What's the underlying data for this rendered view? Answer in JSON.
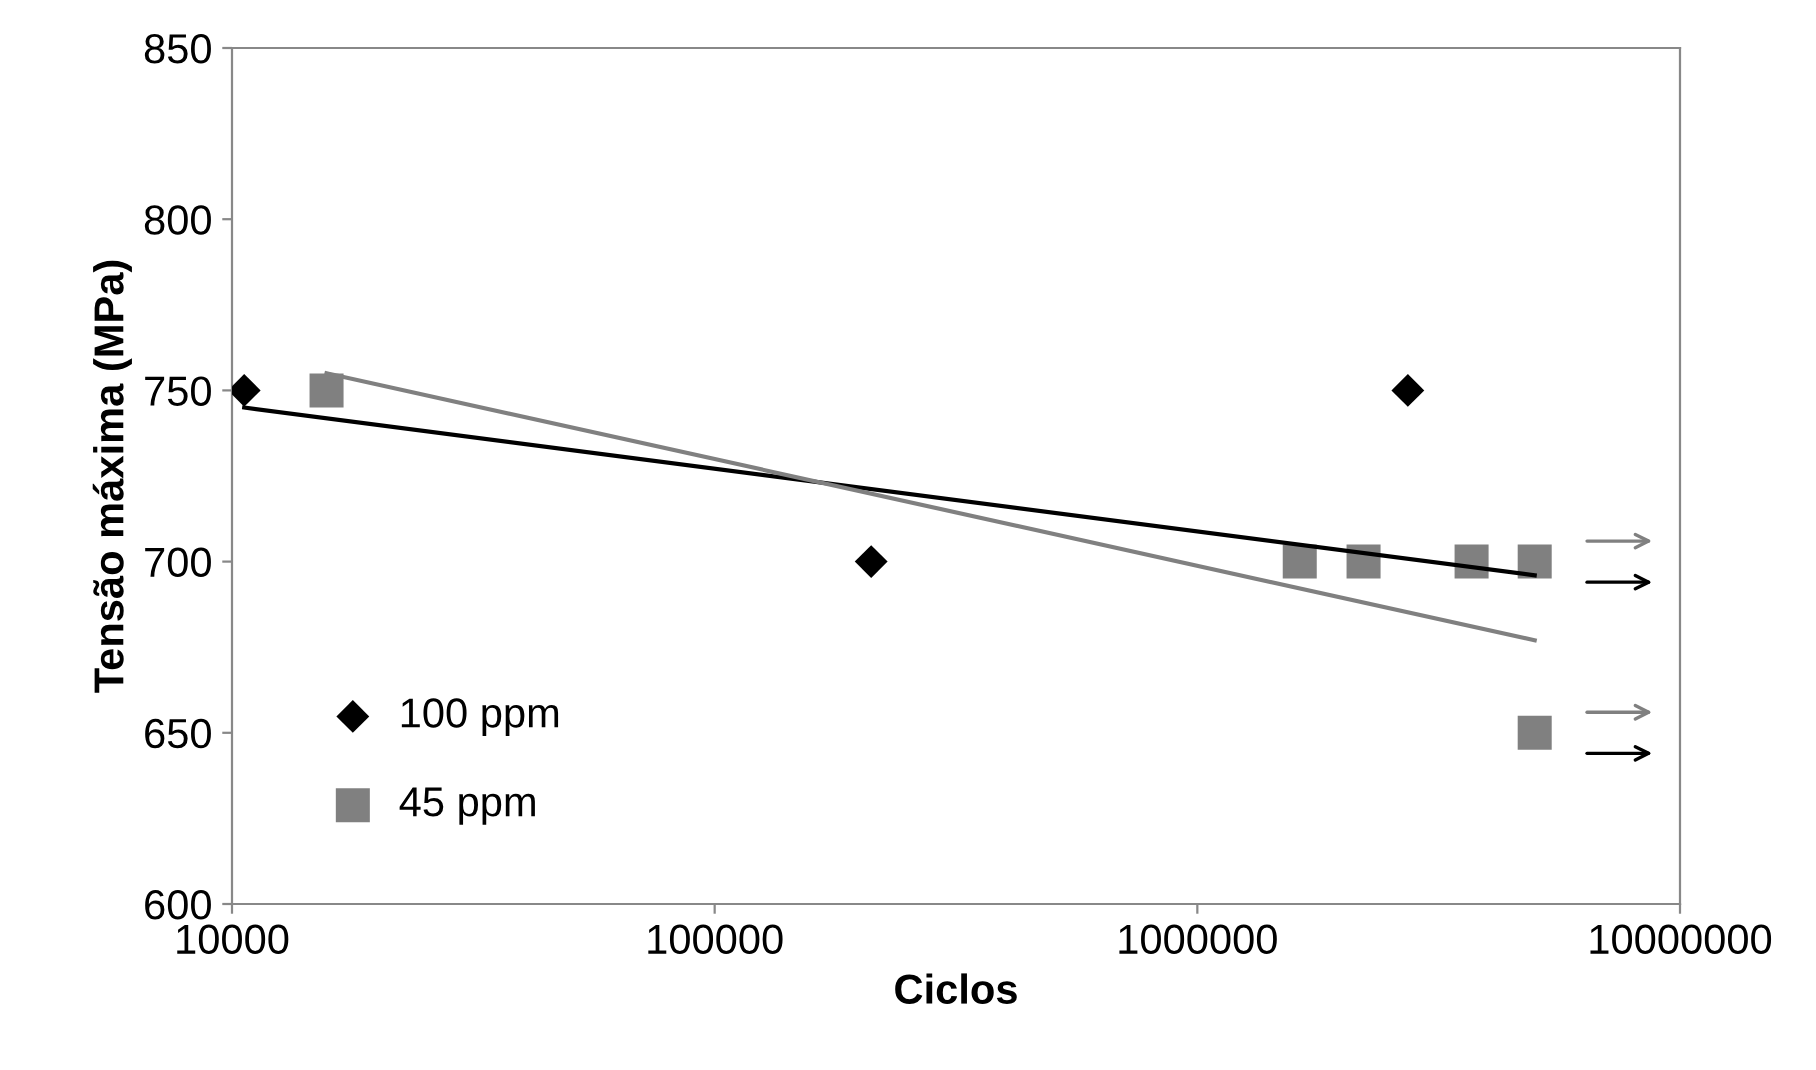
{
  "chart_data": {
    "type": "scatter",
    "xlabel": "Ciclos",
    "ylabel": "Tensão máxima (MPa)",
    "log": "x",
    "xlim": [
      10000,
      10000000
    ],
    "xticks": [
      10000,
      100000,
      1000000,
      10000000
    ],
    "ylim": [
      600,
      850
    ],
    "yticks": [
      600,
      650,
      700,
      750,
      800,
      850
    ],
    "grid": false,
    "legend": "bottom left",
    "series": [
      {
        "name": "100 ppm",
        "color": "#000000",
        "marker": "diamond",
        "x": [
          10600,
          211000,
          2730000
        ],
        "values": [
          750,
          700,
          750
        ]
      },
      {
        "name": "45 ppm",
        "color": "#808080",
        "marker": "square",
        "x": [
          15700,
          1630000,
          2210000,
          3700000,
          5000000,
          5000000
        ],
        "values": [
          750,
          700,
          700,
          700,
          700,
          650
        ]
      },
      {
        "type": "line",
        "color": "#000000",
        "marker": "none",
        "x": [
          10600,
          5000000
        ],
        "values": [
          745,
          696
        ]
      },
      {
        "type": "line",
        "color": "#808080",
        "marker": "none",
        "x": [
          15700,
          5000000
        ],
        "values": [
          755,
          677
        ]
      }
    ]
  }
}
